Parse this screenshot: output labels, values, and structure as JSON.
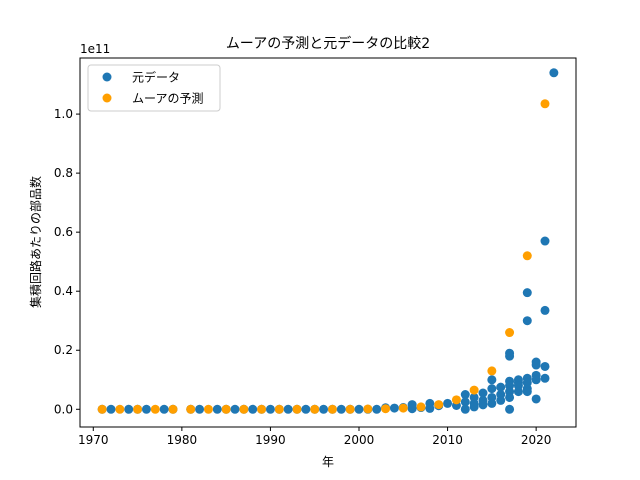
{
  "chart_data": {
    "type": "scatter",
    "title": "ムーアの予測と元データの比較2",
    "xlabel": "年",
    "ylabel": "集積回路あたりの部品数",
    "y_offset_text": "1e11",
    "xlim": [
      1968.5,
      2024.5
    ],
    "ylim": [
      -0.06,
      1.19
    ],
    "y_scale_note": "values in units of 1e11",
    "x_ticks": [
      1970,
      1980,
      1990,
      2000,
      2010,
      2020
    ],
    "y_ticks": [
      0.0,
      0.2,
      0.4,
      0.6,
      0.8,
      1.0
    ],
    "y_tick_labels": [
      "0.0",
      "0.2",
      "0.4",
      "0.6",
      "0.8",
      "1.0"
    ],
    "grid": false,
    "legend_position": "top-left",
    "series": [
      {
        "name": "元データ",
        "color": "#1f77b4",
        "points": [
          [
            1971,
            0
          ],
          [
            1972,
            0
          ],
          [
            1974,
            0
          ],
          [
            1975,
            0
          ],
          [
            1976,
            0
          ],
          [
            1978,
            0
          ],
          [
            1979,
            0
          ],
          [
            1981,
            0
          ],
          [
            1982,
            0
          ],
          [
            1984,
            0
          ],
          [
            1985,
            0
          ],
          [
            1986,
            0
          ],
          [
            1987,
            0
          ],
          [
            1988,
            0
          ],
          [
            1989,
            0
          ],
          [
            1990,
            0
          ],
          [
            1991,
            0
          ],
          [
            1992,
            0
          ],
          [
            1993,
            0
          ],
          [
            1994,
            0
          ],
          [
            1995,
            0
          ],
          [
            1996,
            0
          ],
          [
            1997,
            0
          ],
          [
            1998,
            0
          ],
          [
            1999,
            0
          ],
          [
            2000,
            0
          ],
          [
            2001,
            0
          ],
          [
            2002,
            0
          ],
          [
            2003,
            0.005
          ],
          [
            2004,
            0.004
          ],
          [
            2005,
            0.006
          ],
          [
            2006,
            0.016
          ],
          [
            2006,
            0.002
          ],
          [
            2007,
            0.006
          ],
          [
            2008,
            0.02
          ],
          [
            2008,
            0.003
          ],
          [
            2009,
            0.012
          ],
          [
            2010,
            0.02
          ],
          [
            2011,
            0.013
          ],
          [
            2012,
            0.05
          ],
          [
            2012,
            0.025
          ],
          [
            2012,
            0.0
          ],
          [
            2013,
            0.04
          ],
          [
            2013,
            0.02
          ],
          [
            2013,
            0.008
          ],
          [
            2014,
            0.055
          ],
          [
            2014,
            0.03
          ],
          [
            2014,
            0.015
          ],
          [
            2015,
            0.1
          ],
          [
            2015,
            0.07
          ],
          [
            2015,
            0.04
          ],
          [
            2015,
            0.02
          ],
          [
            2016,
            0.075
          ],
          [
            2016,
            0.05
          ],
          [
            2016,
            0.03
          ],
          [
            2017,
            0.19
          ],
          [
            2017,
            0.18
          ],
          [
            2017,
            0.095
          ],
          [
            2017,
            0.08
          ],
          [
            2017,
            0.06
          ],
          [
            2017,
            0.04
          ],
          [
            2017,
            0.0
          ],
          [
            2018,
            0.1
          ],
          [
            2018,
            0.09
          ],
          [
            2018,
            0.08
          ],
          [
            2018,
            0.06
          ],
          [
            2019,
            0.395
          ],
          [
            2019,
            0.3
          ],
          [
            2019,
            0.105
          ],
          [
            2019,
            0.09
          ],
          [
            2019,
            0.07
          ],
          [
            2019,
            0.06
          ],
          [
            2020,
            0.16
          ],
          [
            2020,
            0.15
          ],
          [
            2020,
            0.115
          ],
          [
            2020,
            0.1
          ],
          [
            2020,
            0.035
          ],
          [
            2021,
            0.57
          ],
          [
            2021,
            0.335
          ],
          [
            2021,
            0.145
          ],
          [
            2021,
            0.105
          ],
          [
            2022,
            1.14
          ]
        ]
      },
      {
        "name": "ムーアの予測",
        "color": "#ff9f00",
        "points": [
          [
            1971,
            0
          ],
          [
            1973,
            0
          ],
          [
            1975,
            0
          ],
          [
            1977,
            0
          ],
          [
            1979,
            0
          ],
          [
            1981,
            0
          ],
          [
            1983,
            0
          ],
          [
            1985,
            0
          ],
          [
            1987,
            0
          ],
          [
            1989,
            0
          ],
          [
            1991,
            0
          ],
          [
            1993,
            0
          ],
          [
            1995,
            0
          ],
          [
            1997,
            0
          ],
          [
            1999,
            0
          ],
          [
            2001,
            0.001
          ],
          [
            2003,
            0.002
          ],
          [
            2005,
            0.004
          ],
          [
            2007,
            0.008
          ],
          [
            2009,
            0.016
          ],
          [
            2011,
            0.032
          ],
          [
            2013,
            0.065
          ],
          [
            2015,
            0.13
          ],
          [
            2017,
            0.26
          ],
          [
            2019,
            0.52
          ],
          [
            2021,
            1.035
          ]
        ]
      }
    ]
  }
}
